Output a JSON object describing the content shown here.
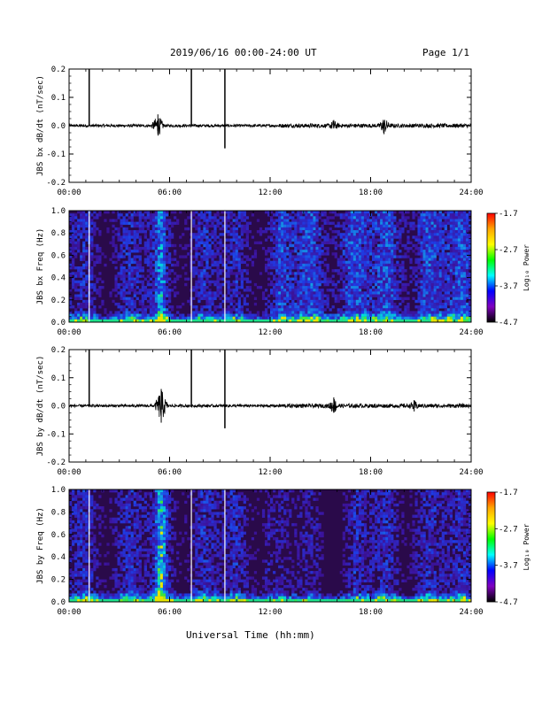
{
  "header": {
    "title": "2019/06/16  00:00-24:00 UT",
    "page": "Page 1/1"
  },
  "x_axis_label": "Universal Time (hh:mm)",
  "colors": {
    "trace": "#000000",
    "spectrogram_background": "#2a0a4a",
    "colorbar": [
      "#ff0000",
      "#ffa500",
      "#ffff00",
      "#00ff00",
      "#00ffff",
      "#0000ff",
      "#8000c0",
      "#000000"
    ]
  },
  "chart_data": [
    {
      "type": "line",
      "ylabel": "JBS bx dB/dt (nT/sec)",
      "xlim": [
        0,
        24
      ],
      "ylim": [
        -0.2,
        0.2
      ],
      "x_ticks": [
        "00:00",
        "06:00",
        "12:00",
        "18:00",
        "24:00"
      ],
      "y_ticks": [
        "0.2",
        "0.1",
        "0.0",
        "-0.1",
        "-0.2"
      ],
      "features": [
        {
          "x": 1.2,
          "y_min": 0.0,
          "y_max": 0.2
        },
        {
          "x": 5.3,
          "y_min": -0.03,
          "y_max": 0.04
        },
        {
          "x": 7.3,
          "y_min": 0.0,
          "y_max": 0.2
        },
        {
          "x": 9.3,
          "y_min": -0.08,
          "y_max": 0.2
        },
        {
          "x": 15.8,
          "y_min": -0.01,
          "y_max": 0.02
        },
        {
          "x": 18.8,
          "y_min": -0.03,
          "y_max": 0.01
        }
      ]
    },
    {
      "type": "heatmap",
      "ylabel": "JBS bx Freq (Hz)",
      "xlim": [
        0,
        24
      ],
      "ylim": [
        0.0,
        1.0
      ],
      "x_ticks": [
        "00:00",
        "06:00",
        "12:00",
        "18:00",
        "24:00"
      ],
      "y_ticks": [
        "1.0",
        "0.8",
        "0.6",
        "0.4",
        "0.2",
        "0.0"
      ],
      "colorbar": {
        "label": "Log₁₀ Power",
        "range": [
          -4.7,
          -1.7
        ],
        "ticks": [
          "-1.7",
          "-2.7",
          "-3.7",
          "-4.7"
        ]
      },
      "gaps": [
        1.2,
        7.3,
        9.3
      ]
    },
    {
      "type": "line",
      "ylabel": "JBS by dB/dt (nT/sec)",
      "xlim": [
        0,
        24
      ],
      "ylim": [
        -0.2,
        0.2
      ],
      "x_ticks": [
        "00:00",
        "06:00",
        "12:00",
        "18:00",
        "24:00"
      ],
      "y_ticks": [
        "0.2",
        "0.1",
        "0.0",
        "-0.1",
        "-0.2"
      ],
      "features": [
        {
          "x": 1.2,
          "y_min": 0.0,
          "y_max": 0.2
        },
        {
          "x": 5.5,
          "y_min": -0.06,
          "y_max": 0.06
        },
        {
          "x": 7.3,
          "y_min": 0.0,
          "y_max": 0.2
        },
        {
          "x": 9.3,
          "y_min": -0.08,
          "y_max": 0.2
        },
        {
          "x": 15.8,
          "y_min": -0.01,
          "y_max": 0.03
        },
        {
          "x": 20.6,
          "y_min": -0.02,
          "y_max": 0.02
        }
      ]
    },
    {
      "type": "heatmap",
      "ylabel": "JBS by Freq (Hz)",
      "xlim": [
        0,
        24
      ],
      "ylim": [
        0.0,
        1.0
      ],
      "x_ticks": [
        "00:00",
        "06:00",
        "12:00",
        "18:00",
        "24:00"
      ],
      "y_ticks": [
        "1.0",
        "0.8",
        "0.6",
        "0.4",
        "0.2",
        "0.0"
      ],
      "colorbar": {
        "label": "Log₁₀ Power",
        "range": [
          -4.7,
          -1.7
        ],
        "ticks": [
          "-1.7",
          "-2.7",
          "-3.7",
          "-4.7"
        ]
      },
      "gaps": [
        1.2,
        7.3,
        9.3
      ]
    }
  ]
}
